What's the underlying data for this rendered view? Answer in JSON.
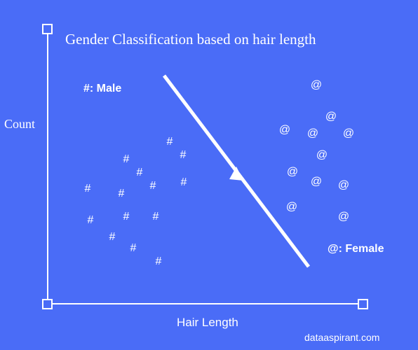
{
  "title": "Gender Classification based on hair length",
  "y_axis_label": "Count",
  "x_axis_label": "Hair Length",
  "legend": {
    "male": "#: Male",
    "female": "@: Female"
  },
  "markers": {
    "male": "#",
    "female": "@"
  },
  "watermark": "dataaspirant.com",
  "colors": {
    "background": "#4a6cf7",
    "foreground": "#ffffff"
  }
}
